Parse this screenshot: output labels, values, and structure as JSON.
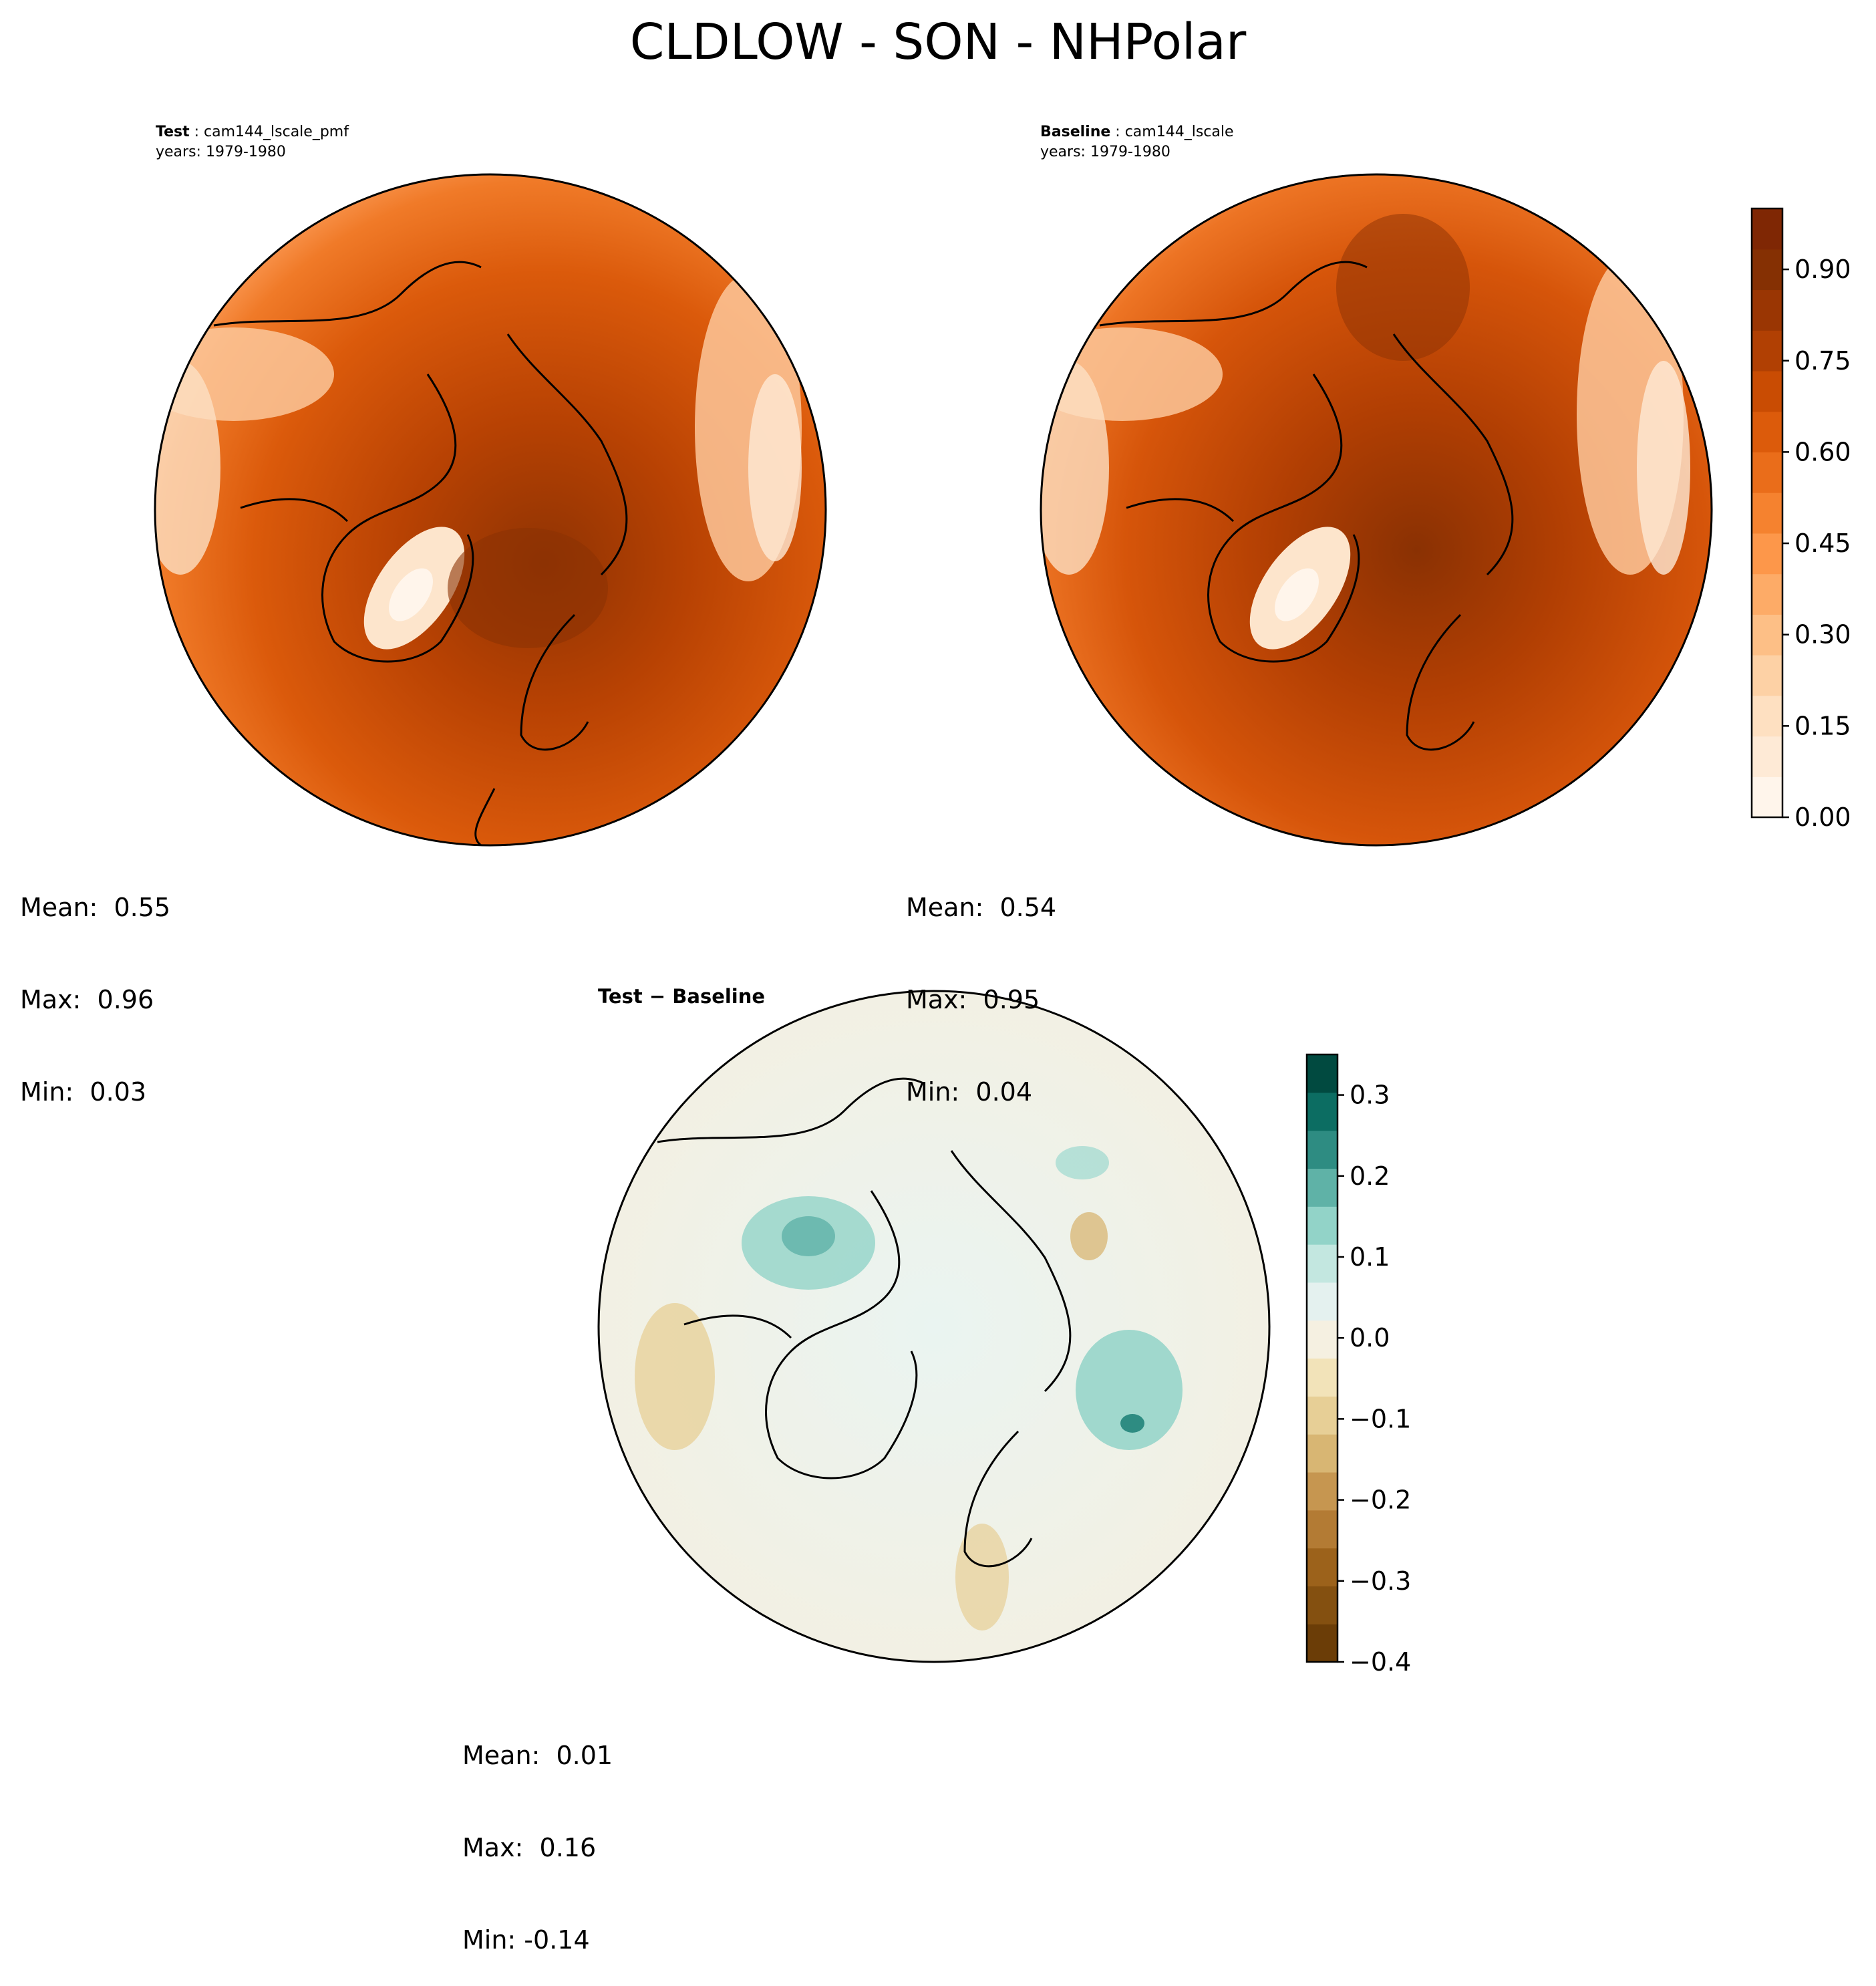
{
  "figure": {
    "title": "CLDLOW - SON - NHPolar"
  },
  "panels": {
    "test": {
      "label": "Test",
      "case": "cam144_lscale_pmf",
      "years": "years: 1979-1980",
      "stats": {
        "mean": "Mean:  0.55",
        "max": "Max:  0.96",
        "min": "Min:  0.03"
      }
    },
    "baseline": {
      "label": "Baseline",
      "case": "cam144_lscale",
      "years": "years: 1979-1980",
      "stats": {
        "mean": "Mean:  0.54",
        "max": "Max:  0.95",
        "min": "Min:  0.04"
      }
    },
    "diff": {
      "label_a": "Test",
      "sep": "−",
      "label_b": "Baseline",
      "stats": {
        "mean": "Mean:  0.01",
        "max": "Max:  0.16",
        "min": "Min: -0.14"
      }
    }
  },
  "chart_data": [
    {
      "type": "heatmap",
      "name": "test map",
      "projection": "north polar stereographic",
      "colormap": "Oranges",
      "mean": 0.55,
      "max": 0.96,
      "min": 0.03
    },
    {
      "type": "heatmap",
      "name": "baseline map",
      "projection": "north polar stereographic",
      "colormap": "Oranges",
      "mean": 0.54,
      "max": 0.95,
      "min": 0.04
    },
    {
      "type": "heatmap",
      "name": "difference map",
      "projection": "north polar stereographic",
      "colormap": "BrBG",
      "mean": 0.01,
      "max": 0.16,
      "min": -0.14
    }
  ],
  "colorbars": {
    "main": {
      "range": [
        0.0,
        1.0
      ],
      "ticks": [
        0.0,
        0.15,
        0.3,
        0.45,
        0.6,
        0.75,
        0.9
      ],
      "tick_labels": [
        "0.00",
        "0.15",
        "0.30",
        "0.45",
        "0.60",
        "0.75",
        "0.90"
      ],
      "colors": [
        "#fff5eb",
        "#feead6",
        "#fee0c1",
        "#fdd1a5",
        "#fdbf86",
        "#fdab67",
        "#fd974a",
        "#f5822f",
        "#ea6d1a",
        "#dc5b0b",
        "#c94c03",
        "#b14003",
        "#9a3603",
        "#853003",
        "#7f2704"
      ]
    },
    "diff": {
      "range": [
        -0.4,
        0.35
      ],
      "ticks": [
        -0.4,
        -0.3,
        -0.2,
        -0.1,
        0.0,
        0.1,
        0.2,
        0.3
      ],
      "tick_labels": [
        "−0.4",
        "−0.3",
        "−0.2",
        "−0.1",
        "0.0",
        "0.1",
        "0.2",
        "0.3"
      ],
      "colors": [
        "#6b3d07",
        "#845010",
        "#9c621b",
        "#b37b34",
        "#c69650",
        "#d8b673",
        "#e7cf96",
        "#f2e3b9",
        "#f5f0e1",
        "#e4f1ef",
        "#c3e7e0",
        "#92d3c8",
        "#5fb2a7",
        "#2e8c82",
        "#0c6d62",
        "#014a40"
      ]
    },
    "tick_color": "#000000"
  }
}
